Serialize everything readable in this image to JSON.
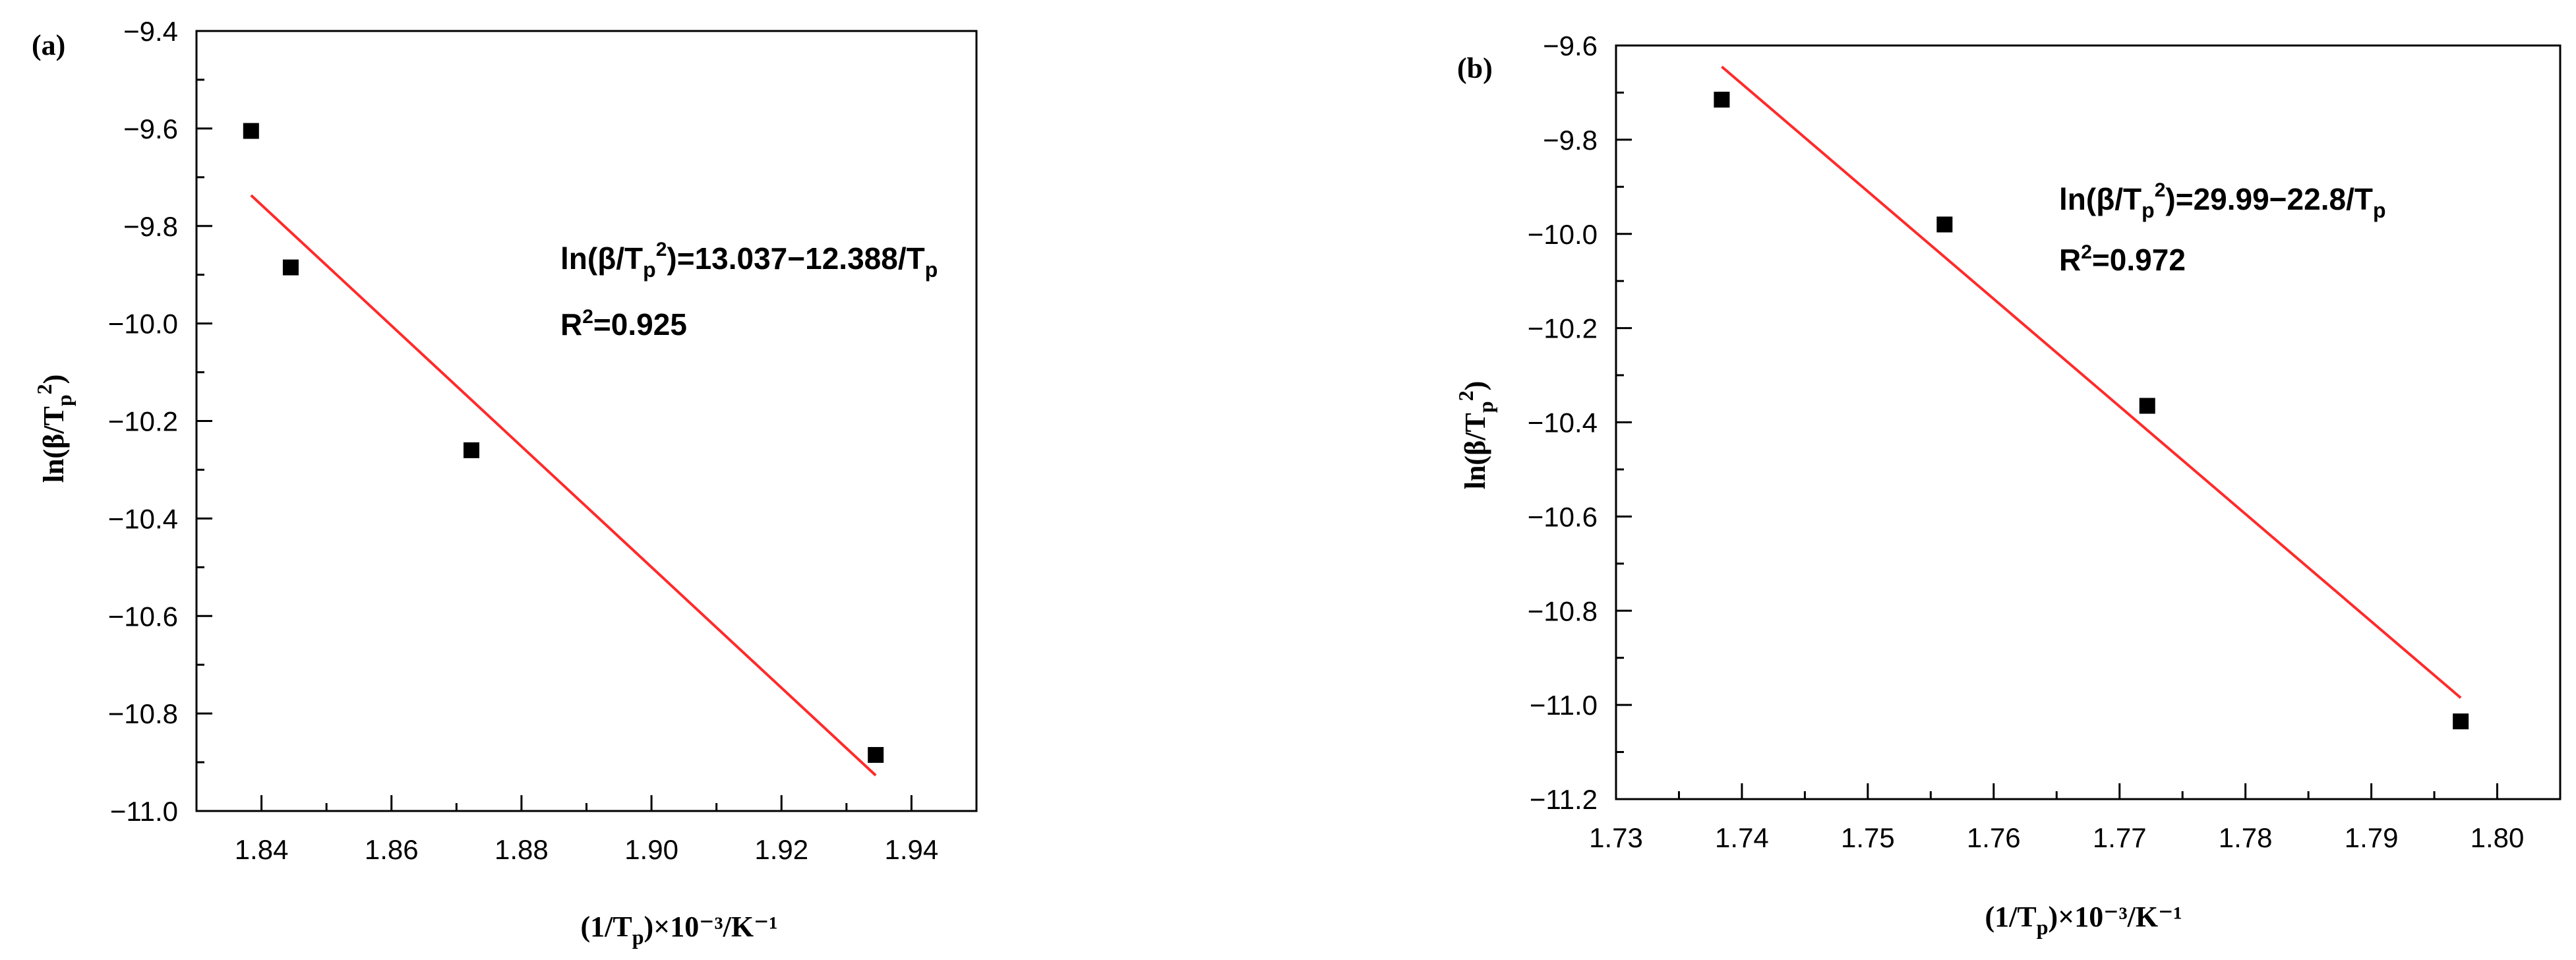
{
  "chart_data": [
    {
      "type": "scatter",
      "panel_label": "(a)",
      "xlabel": {
        "main": "(1/T",
        "sub": "p",
        "tail": ")×10⁻³/K⁻¹"
      },
      "ylabel": {
        "main": "ln(β/T",
        "sub": "p",
        "sup": "2",
        "tail": ")"
      },
      "xlim": [
        1.83,
        1.95
      ],
      "ylim": [
        -11.0,
        -9.4
      ],
      "xticks": [
        1.84,
        1.86,
        1.88,
        1.9,
        1.92,
        1.94
      ],
      "xtick_labels": [
        "1.84",
        "1.86",
        "1.88",
        "1.90",
        "1.92",
        "1.94"
      ],
      "yticks": [
        -11.0,
        -10.8,
        -10.6,
        -10.4,
        -10.2,
        -10.0,
        -9.8,
        -9.6,
        -9.4
      ],
      "ytick_labels": [
        "−11.0",
        "−10.8",
        "−10.6",
        "−10.4",
        "−10.2",
        "−10.0",
        "−9.8",
        "−9.6",
        "−9.4"
      ],
      "series": [
        {
          "x": [
            1.8384,
            1.8445,
            1.8723,
            1.9345
          ],
          "y": [
            -9.605,
            -9.885,
            -10.26,
            -10.885
          ],
          "color": "#000000",
          "marker": "square"
        }
      ],
      "fit_line": {
        "x": [
          1.8384,
          1.9345
        ],
        "y": [
          -9.737,
          -10.927
        ],
        "color": "#ff2a2a"
      },
      "equation": {
        "pre": "ln(β/T",
        "sub1": "p",
        "sup1": "2",
        "post": ")=13.037−12.388/T",
        "sub2": "p"
      },
      "r_squared": {
        "pre": "R",
        "sup": "2",
        "post": "=0.925"
      },
      "grid": false
    },
    {
      "type": "scatter",
      "panel_label": "(b)",
      "xlabel": {
        "main": "(1/T",
        "sub": "p",
        "tail": ")×10⁻³/K⁻¹"
      },
      "ylabel": {
        "main": "ln(β/T",
        "sub": "p",
        "sup": "2",
        "tail": ")"
      },
      "xlim": [
        1.73,
        1.805
      ],
      "ylim": [
        -11.2,
        -9.6
      ],
      "xticks": [
        1.73,
        1.74,
        1.75,
        1.76,
        1.77,
        1.78,
        1.79,
        1.8
      ],
      "xtick_labels": [
        "1.73",
        "1.74",
        "1.75",
        "1.76",
        "1.77",
        "1.78",
        "1.79",
        "1.80"
      ],
      "yticks": [
        -11.2,
        -11.0,
        -10.8,
        -10.6,
        -10.4,
        -10.2,
        -10.0,
        -9.8,
        -9.6
      ],
      "ytick_labels": [
        "−11.2",
        "−11.0",
        "−10.8",
        "−10.6",
        "−10.4",
        "−10.2",
        "−10.0",
        "−9.8",
        "−9.6"
      ],
      "series": [
        {
          "x": [
            1.7384,
            1.7561,
            1.7722,
            1.7971
          ],
          "y": [
            -9.715,
            -9.98,
            -10.365,
            -11.035
          ],
          "color": "#000000",
          "marker": "square"
        }
      ],
      "fit_line": {
        "x": [
          1.7384,
          1.7971
        ],
        "y": [
          -9.645,
          -10.985
        ],
        "color": "#ff2a2a"
      },
      "equation": {
        "pre": "ln(β/T",
        "sub1": "p",
        "sup1": "2",
        "post": ")=29.99−22.8/T",
        "sub2": "p"
      },
      "r_squared": {
        "pre": "R",
        "sup": "2",
        "post": "=0.972"
      },
      "grid": false
    }
  ]
}
